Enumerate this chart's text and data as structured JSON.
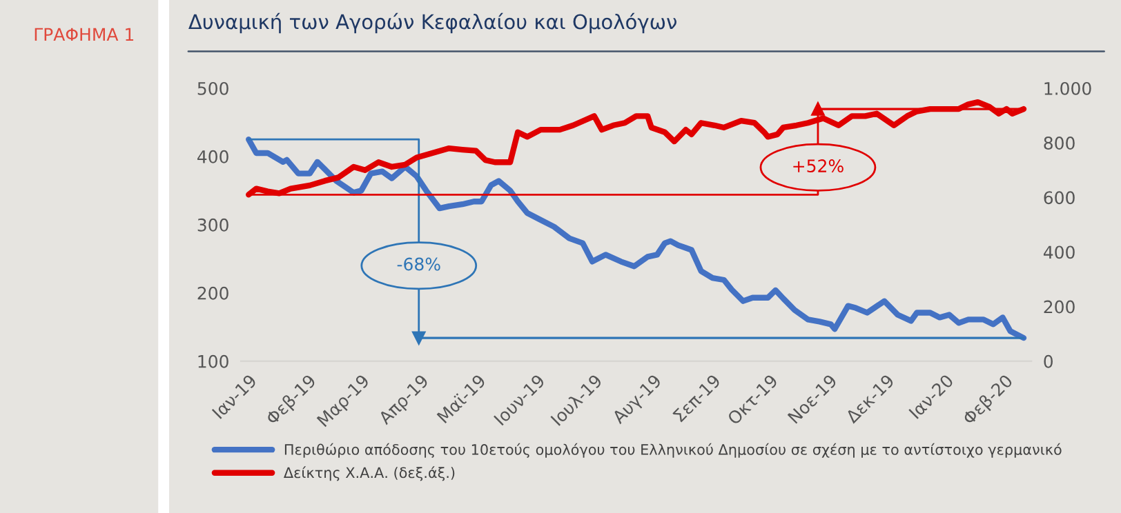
{
  "chart_data": {
    "type": "line",
    "title": "Δυναμική των Αγορών Κεφαλαίου και Ομολόγων",
    "subtitle": "ΓΡΑΦΗΜΑ 1",
    "xlim": [
      "2018-12-28",
      "2020-02-15"
    ],
    "xticks": [
      {
        "value": "2019-01-01",
        "label": "Ιαν-19"
      },
      {
        "value": "2019-02-01",
        "label": "Φεβ-19"
      },
      {
        "value": "2019-03-01",
        "label": "Μαρ-19"
      },
      {
        "value": "2019-04-01",
        "label": "Απρ-19"
      },
      {
        "value": "2019-05-01",
        "label": "Μαϊ-19"
      },
      {
        "value": "2019-06-01",
        "label": "Ιουν-19"
      },
      {
        "value": "2019-07-01",
        "label": "Ιουλ-19"
      },
      {
        "value": "2019-08-01",
        "label": "Αυγ-19"
      },
      {
        "value": "2019-09-01",
        "label": "Σεπ-19"
      },
      {
        "value": "2019-10-01",
        "label": "Οκτ-19"
      },
      {
        "value": "2019-11-01",
        "label": "Νοε-19"
      },
      {
        "value": "2019-12-01",
        "label": "Δεκ-19"
      },
      {
        "value": "2020-01-01",
        "label": "Ιαν-20"
      },
      {
        "value": "2020-02-01",
        "label": "Φεβ-20"
      }
    ],
    "ylim": [
      100,
      500
    ],
    "yticks": [
      100,
      200,
      300,
      400,
      500
    ],
    "y2lim": [
      0,
      1000
    ],
    "y2ticks": [
      0,
      200,
      400,
      600,
      800,
      {
        "value": 1000,
        "label": "1.000"
      }
    ],
    "grid": false,
    "legend": "bottom",
    "marker": "none",
    "line_style": "solid",
    "series": [
      {
        "name": "Περιθώριο απόδοσης του 10ετούς ομολόγου του Ελληνικού Δημοσίου σε σχέση με το αντίστοιχο γερμανικό",
        "color": "#4472c4",
        "x": [
          "2019-01-01",
          "2019-01-05",
          "2019-01-11",
          "2019-01-19",
          "2019-01-21",
          "2019-01-27",
          "2019-02-02",
          "2019-02-06",
          "2019-02-10",
          "2019-02-16",
          "2019-02-25",
          "2019-03-01",
          "2019-03-06",
          "2019-03-12",
          "2019-03-17",
          "2019-03-24",
          "2019-03-30",
          "2019-04-04",
          "2019-04-11",
          "2019-04-16",
          "2019-04-23",
          "2019-04-29",
          "2019-05-03",
          "2019-05-08",
          "2019-05-12",
          "2019-05-18",
          "2019-05-22",
          "2019-05-27",
          "2019-06-03",
          "2019-06-10",
          "2019-06-18",
          "2019-06-25",
          "2019-06-30",
          "2019-07-07",
          "2019-07-15",
          "2019-07-22",
          "2019-07-29",
          "2019-08-03",
          "2019-08-07",
          "2019-08-10",
          "2019-08-14",
          "2019-08-18",
          "2019-08-21",
          "2019-08-26",
          "2019-09-01",
          "2019-09-07",
          "2019-09-11",
          "2019-09-17",
          "2019-09-22",
          "2019-09-30",
          "2019-10-04",
          "2019-10-08",
          "2019-10-14",
          "2019-10-21",
          "2019-10-27",
          "2019-11-02",
          "2019-11-04",
          "2019-11-11",
          "2019-11-15",
          "2019-11-21",
          "2019-11-30",
          "2019-12-07",
          "2019-12-14",
          "2019-12-17",
          "2019-12-24",
          "2019-12-29",
          "2020-01-03",
          "2020-01-08",
          "2020-01-13",
          "2020-01-21",
          "2020-01-26",
          "2020-01-31",
          "2020-02-04",
          "2020-02-11"
        ],
        "values": [
          425,
          405,
          405,
          392,
          395,
          375,
          375,
          392,
          381,
          364,
          347,
          350,
          375,
          378,
          368,
          385,
          371,
          350,
          324,
          327,
          330,
          334,
          334,
          358,
          364,
          350,
          334,
          317,
          307,
          297,
          280,
          273,
          246,
          256,
          246,
          239,
          253,
          256,
          273,
          276,
          270,
          266,
          263,
          232,
          222,
          219,
          205,
          188,
          193,
          193,
          204,
          192,
          175,
          161,
          158,
          154,
          147,
          181,
          178,
          171,
          188,
          168,
          159,
          171,
          171,
          164,
          168,
          156,
          161,
          161,
          154,
          164,
          144,
          134
        ]
      },
      {
        "name": "Δείκτης Χ.Α.Α. (δεξ.άξ.)",
        "color": "#e00000",
        "axis": "y2",
        "x": [
          "2019-01-01",
          "2019-01-05",
          "2019-01-11",
          "2019-01-17",
          "2019-01-23",
          "2019-02-02",
          "2019-02-10",
          "2019-02-17",
          "2019-02-25",
          "2019-03-03",
          "2019-03-10",
          "2019-03-17",
          "2019-03-24",
          "2019-03-30",
          "2019-04-05",
          "2019-04-16",
          "2019-04-23",
          "2019-04-30",
          "2019-05-05",
          "2019-05-10",
          "2019-05-18",
          "2019-05-22",
          "2019-05-27",
          "2019-06-03",
          "2019-06-13",
          "2019-06-20",
          "2019-07-01",
          "2019-07-05",
          "2019-07-11",
          "2019-07-17",
          "2019-07-23",
          "2019-07-29",
          "2019-07-31",
          "2019-08-07",
          "2019-08-12",
          "2019-08-18",
          "2019-08-21",
          "2019-08-26",
          "2019-09-02",
          "2019-09-07",
          "2019-09-16",
          "2019-09-23",
          "2019-09-28",
          "2019-09-30",
          "2019-10-05",
          "2019-10-08",
          "2019-10-15",
          "2019-10-21",
          "2019-10-29",
          "2019-11-06",
          "2019-11-13",
          "2019-11-20",
          "2019-11-26",
          "2019-12-05",
          "2019-12-12",
          "2019-12-17",
          "2019-12-24",
          "2019-12-31",
          "2020-01-08",
          "2020-01-13",
          "2020-01-18",
          "2020-01-24",
          "2020-01-29",
          "2020-02-02",
          "2020-02-05",
          "2020-02-11"
        ],
        "values": [
          610,
          632,
          622,
          615,
          632,
          644,
          661,
          673,
          712,
          700,
          729,
          712,
          720,
          746,
          758,
          780,
          775,
          771,
          737,
          729,
          729,
          839,
          822,
          848,
          848,
          864,
          898,
          848,
          864,
          873,
          898,
          898,
          856,
          839,
          805,
          848,
          831,
          873,
          864,
          856,
          881,
          873,
          839,
          822,
          831,
          856,
          864,
          873,
          890,
          864,
          898,
          898,
          907,
          864,
          898,
          915,
          924,
          924,
          924,
          941,
          949,
          932,
          907,
          924,
          907,
          924
        ]
      }
    ],
    "annotations": [
      "-68%",
      "+52%"
    ]
  }
}
